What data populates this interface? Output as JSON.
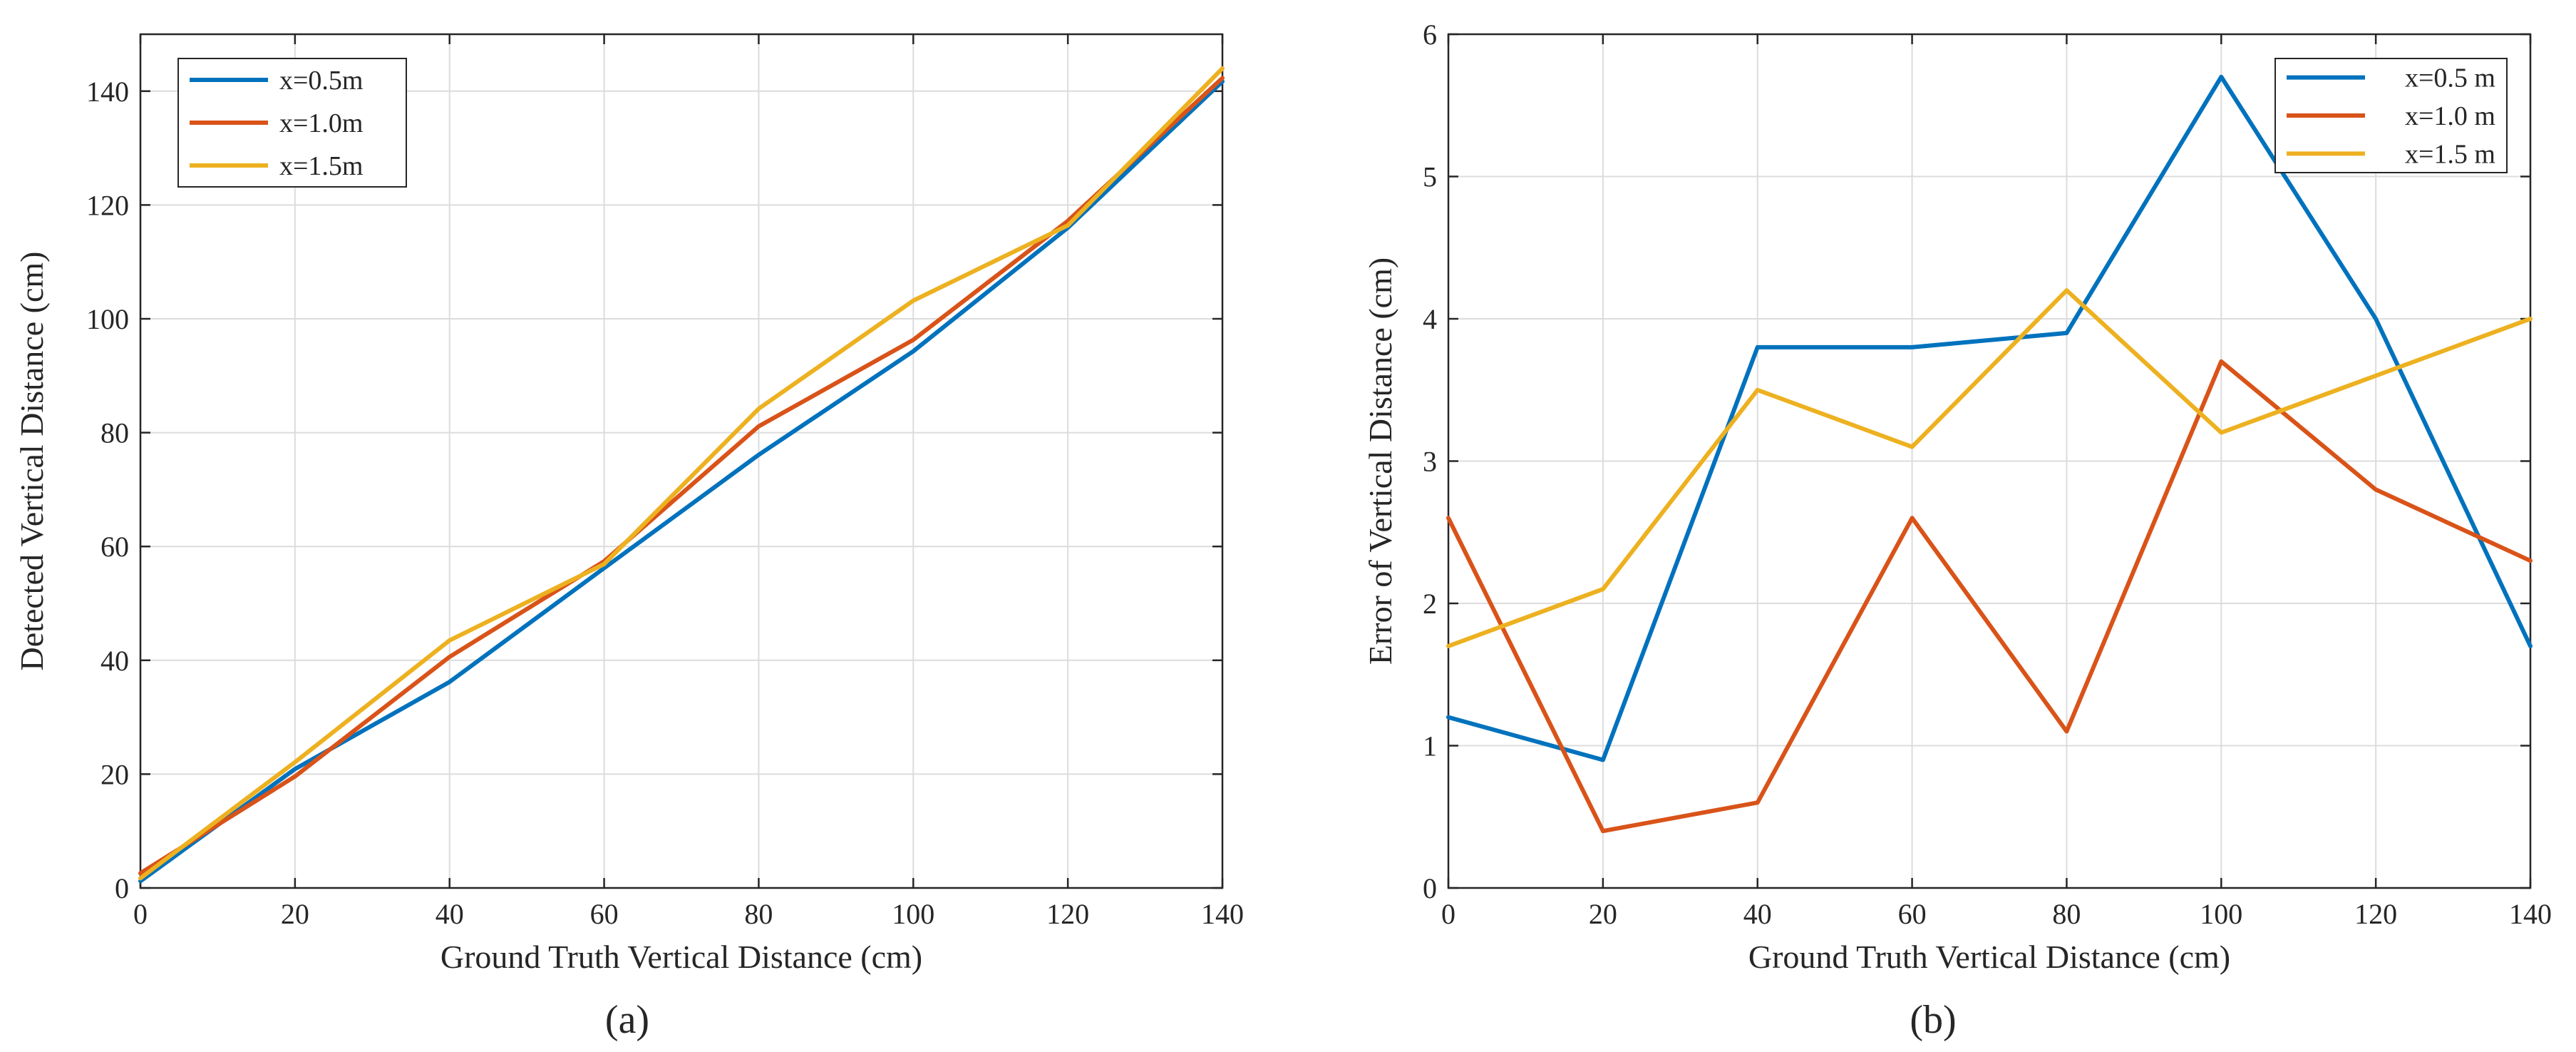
{
  "chart_data": [
    {
      "type": "line",
      "panel": "a",
      "caption": "(a)",
      "title": "",
      "xlabel": "Ground Truth Vertical Distance (cm)",
      "ylabel": "Detected Vertical Distance  (cm)",
      "xlim": [
        0,
        140
      ],
      "ylim": [
        0,
        150
      ],
      "xticks": [
        0,
        20,
        40,
        60,
        80,
        100,
        120,
        140
      ],
      "yticks": [
        0,
        20,
        40,
        60,
        80,
        100,
        120,
        140
      ],
      "grid": true,
      "legend_position": "top-left",
      "x": [
        0,
        20,
        40,
        60,
        80,
        100,
        120,
        140
      ],
      "series": [
        {
          "name": "x=0.5m",
          "color": "#0072BD",
          "values": [
            1.2,
            20.9,
            36.2,
            56.2,
            76.1,
            94.3,
            116.0,
            141.7
          ]
        },
        {
          "name": "x=1.0m",
          "color": "#D95319",
          "values": [
            2.6,
            19.6,
            40.6,
            57.4,
            81.1,
            96.3,
            117.2,
            142.3
          ]
        },
        {
          "name": "x=1.5m",
          "color": "#EDB120",
          "values": [
            1.7,
            22.1,
            43.5,
            56.9,
            84.2,
            103.2,
            116.4,
            144.0
          ]
        }
      ]
    },
    {
      "type": "line",
      "panel": "b",
      "caption": "(b)",
      "title": "",
      "xlabel": "Ground Truth Vertical Distance (cm)",
      "ylabel": "Error of Vertical Distance (cm)",
      "xlim": [
        0,
        140
      ],
      "ylim": [
        0,
        6
      ],
      "xticks": [
        0,
        20,
        40,
        60,
        80,
        100,
        120,
        140
      ],
      "yticks": [
        0,
        1,
        2,
        3,
        4,
        5,
        6
      ],
      "grid": true,
      "legend_position": "top-right",
      "x": [
        0,
        20,
        40,
        60,
        80,
        100,
        120,
        140
      ],
      "series": [
        {
          "name": "x=0.5 m",
          "color": "#0072BD",
          "values": [
            1.2,
            0.9,
            3.8,
            3.8,
            3.9,
            5.7,
            4.0,
            1.7
          ]
        },
        {
          "name": "x=1.0 m",
          "color": "#D95319",
          "values": [
            2.6,
            0.4,
            0.6,
            2.6,
            1.1,
            3.7,
            2.8,
            2.3
          ]
        },
        {
          "name": "x=1.5 m",
          "color": "#EDB120",
          "values": [
            1.7,
            2.1,
            3.5,
            3.1,
            4.2,
            3.2,
            3.6,
            4.0
          ]
        }
      ]
    }
  ]
}
